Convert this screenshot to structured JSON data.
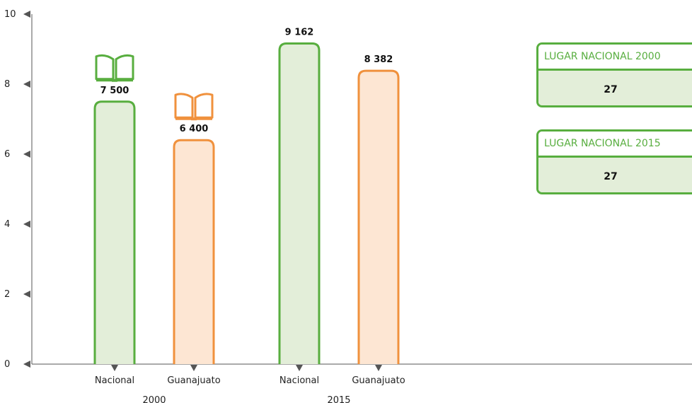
{
  "chart_data": {
    "type": "bar",
    "groups": [
      {
        "name": "2000",
        "bars": [
          {
            "category": "Nacional",
            "value": 7500,
            "label": "7 500",
            "series": "nacional"
          },
          {
            "category": "Guanajuato",
            "value": 6400,
            "label": "6 400",
            "series": "guanajuato"
          }
        ]
      },
      {
        "name": "2015",
        "bars": [
          {
            "category": "Nacional",
            "value": 9162,
            "label": "9 162",
            "series": "nacional"
          },
          {
            "category": "Guanajuato",
            "value": 8382,
            "label": "8 382",
            "series": "guanajuato"
          }
        ]
      }
    ],
    "y_ticks": [
      "0",
      "2",
      "4",
      "6",
      "8",
      "10"
    ],
    "ylim": [
      0,
      10000
    ],
    "grid": false,
    "legend": "none",
    "colors": {
      "nacional_stroke": "#58ae3f",
      "nacional_fill": "#e3eed9",
      "guanajuato_stroke": "#f0913d",
      "guanajuato_fill": "#fde6d3",
      "axis": "#555555"
    },
    "icons": [
      "open-book-icon-green",
      "open-book-icon-orange"
    ]
  },
  "rank_boxes": [
    {
      "title": "LUGAR NACIONAL 2000",
      "value": "27"
    },
    {
      "title": "LUGAR NACIONAL 2015",
      "value": "27"
    }
  ]
}
